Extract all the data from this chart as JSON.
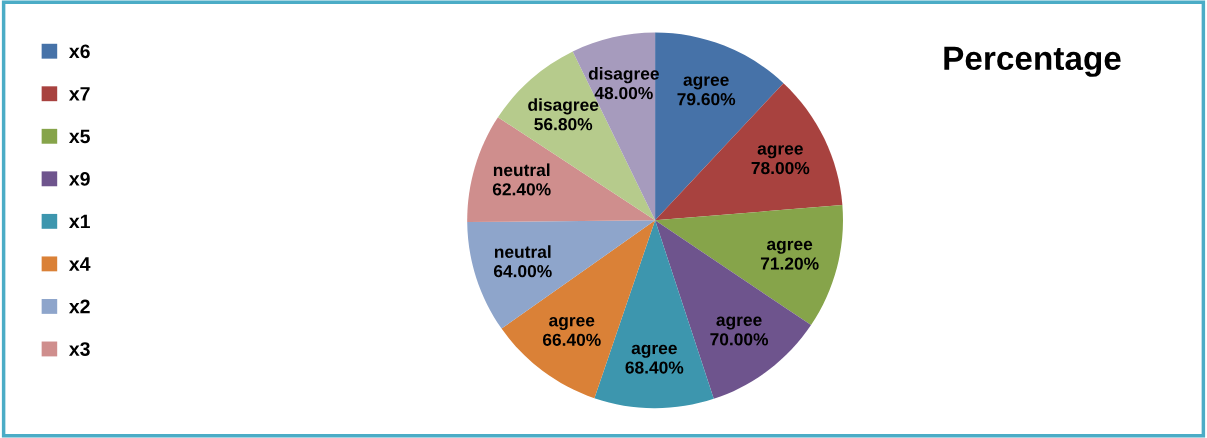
{
  "chart_data": {
    "type": "pie",
    "title": "Percentage",
    "categories": [
      "x6",
      "x7",
      "x5",
      "x9",
      "x1",
      "x4",
      "x2",
      "x3",
      null,
      null
    ],
    "values": [
      79.6,
      78.0,
      71.2,
      70.0,
      68.4,
      66.4,
      64.0,
      62.4,
      56.8,
      48.0
    ],
    "colors": [
      "#4672a8",
      "#a8423f",
      "#86a44a",
      "#6e548d",
      "#3d96ae",
      "#da8137",
      "#8ea5cb",
      "#cf8e8d",
      "#b6cb8c",
      "#a69bbd"
    ],
    "value_labels": [
      "agree\n79.60%",
      "agree\n78.00%",
      "agree\n71.20%",
      "agree\n70.00%",
      "agree\n68.40%",
      "agree\n66.40%",
      "neutral\n64.00%",
      "neutral\n62.40%",
      "disagree\n56.80%",
      "disagree\n48.00%"
    ],
    "legend": "top left"
  }
}
